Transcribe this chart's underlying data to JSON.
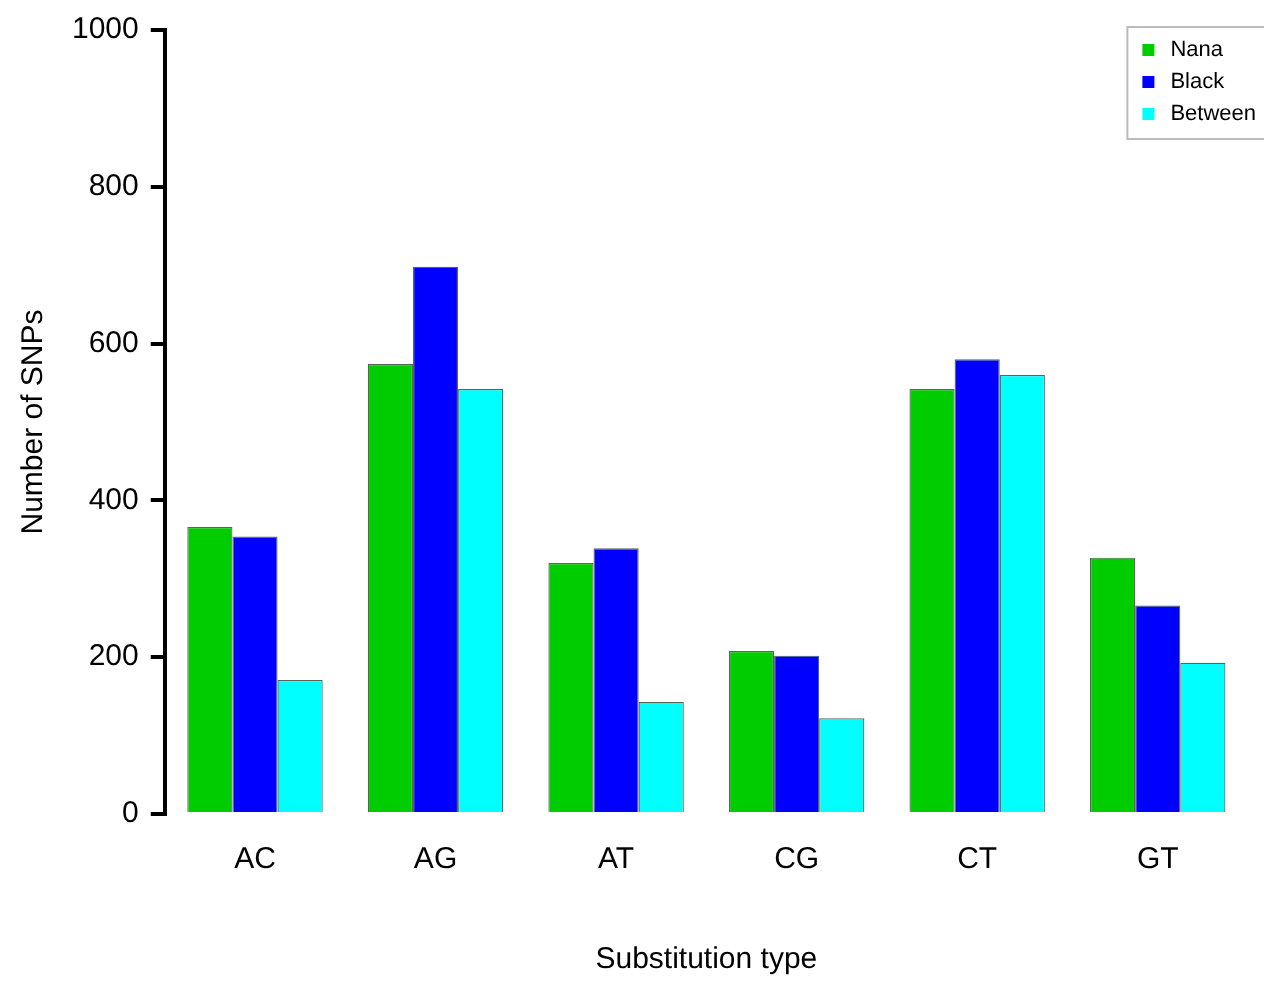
{
  "chart_data": {
    "type": "bar",
    "xlabel": "Substitution type",
    "ylabel": "Number of SNPs",
    "categories": [
      "AC",
      "AG",
      "AT",
      "CG",
      "CT",
      "GT"
    ],
    "series": [
      {
        "name": "Nana",
        "color": "#00cd00",
        "values": [
          366,
          574,
          320,
          208,
          542,
          327
        ]
      },
      {
        "name": "Black",
        "color": "#0000ff",
        "values": [
          354,
          698,
          339,
          202,
          580,
          266
        ]
      },
      {
        "name": "Between",
        "color": "#00ffff",
        "values": [
          171,
          542,
          143,
          122,
          560,
          193
        ]
      }
    ],
    "ylim": [
      0,
      1000
    ],
    "yticks": [
      0,
      200,
      400,
      600,
      800,
      1000
    ],
    "grid": false,
    "legend": "top right"
  }
}
